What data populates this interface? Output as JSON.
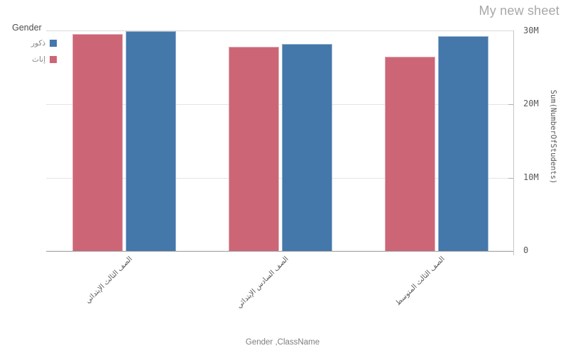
{
  "sheet": {
    "title": "My new sheet"
  },
  "legend": {
    "title": "Gender",
    "items": [
      {
        "label": "ذكور",
        "color": "#4477aa",
        "swatch_icon": "square-swatch-icon"
      },
      {
        "label": "إناث",
        "color": "#cc6677",
        "swatch_icon": "square-swatch-icon"
      }
    ]
  },
  "chart_data": {
    "type": "bar",
    "title": "",
    "categories": [
      "الصف الثالث الإبتدائي",
      "الصف السادس الإبتدائي",
      "الصف الثالث المتوسط"
    ],
    "series": [
      {
        "name": "إناث",
        "color": "#cc6677",
        "values_millions": [
          29.6,
          27.9,
          26.5
        ]
      },
      {
        "name": "ذكور",
        "color": "#4477aa",
        "values_millions": [
          30.0,
          28.3,
          29.3
        ]
      }
    ],
    "xlabel": "Gender ,ClassName",
    "ylabel": "Sum(NumberOfStudents)",
    "yticks": [
      {
        "label": "0",
        "value": 0
      },
      {
        "label": "10M",
        "value": 10
      },
      {
        "label": "20M",
        "value": 20
      },
      {
        "label": "30M",
        "value": 30
      }
    ],
    "ylim_millions": [
      0,
      30
    ],
    "grid": true,
    "legend_position": "top-left",
    "y_axis_position": "right",
    "colors": {
      "male": "#4477aa",
      "female": "#cc6677"
    }
  }
}
